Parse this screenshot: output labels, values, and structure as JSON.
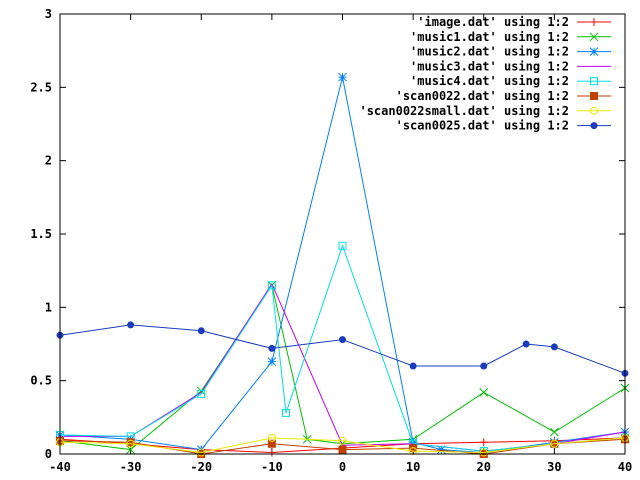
{
  "chart_data": {
    "type": "line",
    "title": "",
    "xlabel": "",
    "ylabel": "",
    "xlim": [
      -40,
      40
    ],
    "ylim": [
      0,
      3
    ],
    "grid": false,
    "legend_position": "top-right",
    "xticks": [
      -40,
      -30,
      -20,
      -10,
      0,
      10,
      20,
      30,
      40
    ],
    "xtick_labels": [
      "-40",
      "-30",
      "-20",
      "-10",
      "0",
      "10",
      "20",
      "30",
      "40"
    ],
    "yticks": [
      0,
      0.5,
      1,
      1.5,
      2,
      2.5,
      3
    ],
    "ytick_labels": [
      "0",
      "0.5",
      "1",
      "1.5",
      "2",
      "2.5",
      "3"
    ],
    "series": [
      {
        "name": "'image.dat' using 1:2",
        "color": "#ff0000",
        "marker": "plus",
        "points": [
          [
            -40,
            0.1
          ],
          [
            -30,
            0.07
          ],
          [
            -20,
            0.03
          ],
          [
            -10,
            0.01
          ],
          [
            0,
            0.04
          ],
          [
            10,
            0.07
          ],
          [
            20,
            0.08
          ],
          [
            30,
            0.09
          ],
          [
            40,
            0.11
          ]
        ]
      },
      {
        "name": "'music1.dat' using 1:2",
        "color": "#00c000",
        "marker": "cross",
        "points": [
          [
            -40,
            0.09
          ],
          [
            -30,
            0.03
          ],
          [
            -20,
            0.43
          ],
          [
            -10,
            1.15
          ],
          [
            -5,
            0.1
          ],
          [
            0,
            0.07
          ],
          [
            10,
            0.1
          ],
          [
            20,
            0.42
          ],
          [
            30,
            0.15
          ],
          [
            40,
            0.45
          ]
        ]
      },
      {
        "name": "'music2.dat' using 1:2",
        "color": "#0080ff",
        "marker": "star",
        "points": [
          [
            -40,
            0.13
          ],
          [
            -30,
            0.1
          ],
          [
            -20,
            0.03
          ],
          [
            -10,
            0.63
          ],
          [
            0,
            2.57
          ],
          [
            10,
            0.08
          ],
          [
            14,
            0.03
          ],
          [
            20,
            0.01
          ],
          [
            30,
            0.08
          ],
          [
            40,
            0.15
          ]
        ]
      },
      {
        "name": "'music3.dat' using 1:2",
        "color": "#c000ff",
        "marker": "none",
        "points": [
          [
            -40,
            0.12
          ],
          [
            -30,
            0.12
          ],
          [
            -20,
            0.42
          ],
          [
            -10,
            1.16
          ],
          [
            0,
            0.06
          ],
          [
            10,
            0.07
          ],
          [
            20,
            0.02
          ],
          [
            30,
            0.07
          ],
          [
            40,
            0.15
          ]
        ]
      },
      {
        "name": "'music4.dat' using 1:2",
        "color": "#00e0e0",
        "marker": "square",
        "points": [
          [
            -40,
            0.13
          ],
          [
            -30,
            0.12
          ],
          [
            -20,
            0.41
          ],
          [
            -10,
            1.15
          ],
          [
            -8,
            0.28
          ],
          [
            0,
            1.42
          ],
          [
            10,
            0.07
          ],
          [
            20,
            0.02
          ],
          [
            30,
            0.07
          ],
          [
            40,
            0.11
          ]
        ]
      },
      {
        "name": "'scan0022.dat' using 1:2",
        "color": "#c04000",
        "marker": "filled-square",
        "points": [
          [
            -40,
            0.09
          ],
          [
            -30,
            0.08
          ],
          [
            -20,
            0.0
          ],
          [
            -10,
            0.07
          ],
          [
            0,
            0.03
          ],
          [
            10,
            0.04
          ],
          [
            20,
            0.0
          ],
          [
            30,
            0.07
          ],
          [
            40,
            0.1
          ]
        ]
      },
      {
        "name": "'scan0022small.dat' using 1:2",
        "color": "#e8e800",
        "marker": "circle",
        "points": [
          [
            -40,
            0.08
          ],
          [
            -30,
            0.07
          ],
          [
            -20,
            0.01
          ],
          [
            -10,
            0.11
          ],
          [
            0,
            0.09
          ],
          [
            10,
            0.02
          ],
          [
            20,
            0.01
          ],
          [
            30,
            0.07
          ],
          [
            40,
            0.11
          ]
        ]
      },
      {
        "name": "'scan0025.dat' using 1:2",
        "color": "#1a3cbd",
        "marker": "filled-circle",
        "points": [
          [
            -40,
            0.81
          ],
          [
            -30,
            0.88
          ],
          [
            -20,
            0.84
          ],
          [
            -10,
            0.72
          ],
          [
            0,
            0.78
          ],
          [
            10,
            0.6
          ],
          [
            20,
            0.6
          ],
          [
            26,
            0.75
          ],
          [
            30,
            0.73
          ],
          [
            40,
            0.55
          ]
        ]
      }
    ]
  }
}
